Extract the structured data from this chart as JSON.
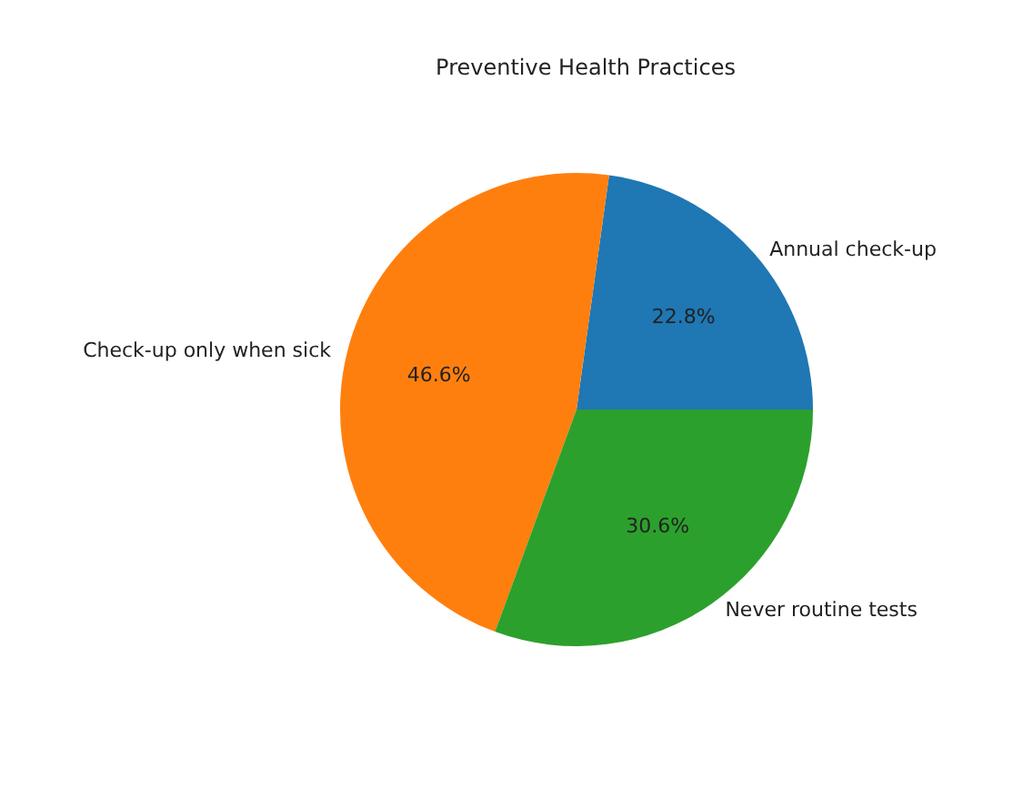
{
  "chart_data": {
    "type": "pie",
    "title": "Preventive Health Practices",
    "categories": [
      "Annual check-up",
      "Check-up only when sick",
      "Never routine tests"
    ],
    "values": [
      22.8,
      46.6,
      30.6
    ],
    "colors": [
      "#1f77b4",
      "#ff7f0e",
      "#2ca02c"
    ],
    "value_labels": [
      "22.8%",
      "46.6%",
      "30.6%"
    ]
  }
}
